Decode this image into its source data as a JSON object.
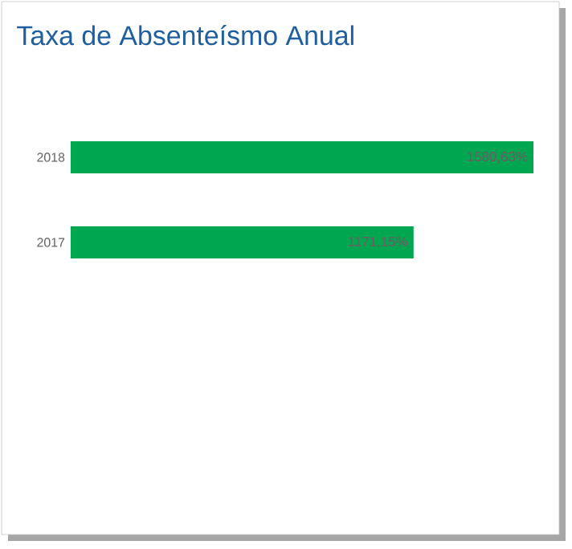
{
  "chart_data": {
    "type": "bar",
    "title": "Taxa de Absenteísmo Anual",
    "orientation": "horizontal",
    "categories": [
      "2018",
      "2017"
    ],
    "values": [
      1580.63,
      1171.15
    ],
    "value_labels": [
      "1580,63%",
      "1171,15%"
    ],
    "color": "#00a650"
  }
}
